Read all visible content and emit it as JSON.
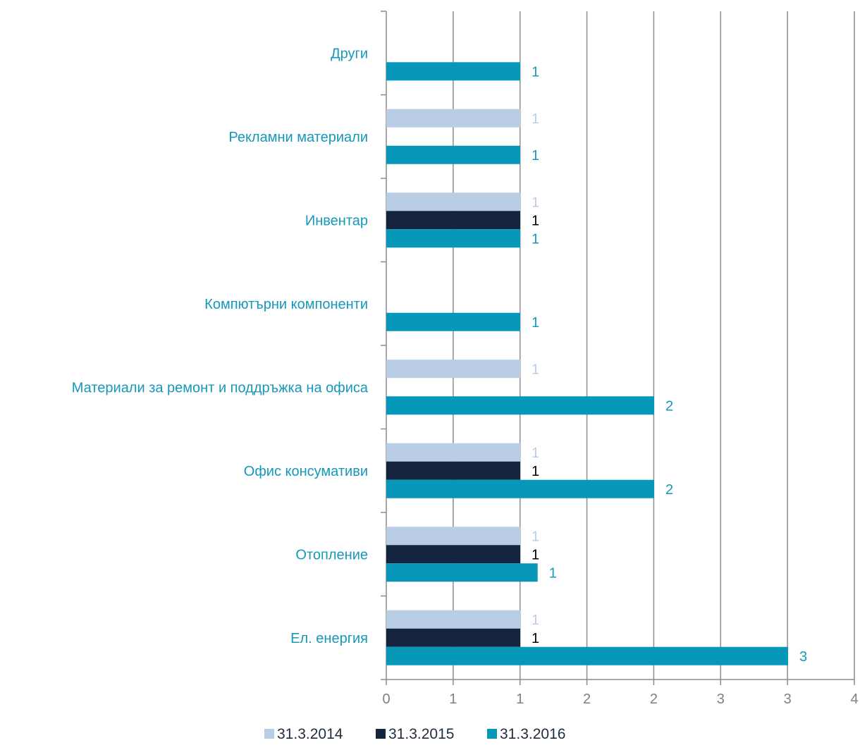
{
  "chart_data": {
    "type": "bar",
    "orientation": "horizontal",
    "categories": [
      "Ел. енергия",
      "Отопление",
      "Офис консумативи",
      "Материали за ремонт и поддръжка на офиса",
      "Компютърни компоненти",
      "Инвентар",
      "Рекламни материали",
      "Други"
    ],
    "x_ticks": [
      "0",
      "1",
      "1",
      "2",
      "2",
      "3",
      "3",
      "4"
    ],
    "xlim": [
      0,
      3.5
    ],
    "grid": "vertical",
    "legend_position": "bottom",
    "series": [
      {
        "name": "31.3.2014",
        "color": "#b9cde5",
        "values": [
          1,
          1,
          1,
          1,
          null,
          1,
          1,
          null
        ],
        "labels": [
          "1",
          "1",
          "1",
          "1",
          "",
          "1",
          "1",
          ""
        ]
      },
      {
        "name": "31.3.2015",
        "color": "#14243f",
        "values": [
          1,
          1,
          1,
          null,
          null,
          1,
          null,
          null
        ],
        "labels": [
          "1",
          "1",
          "1",
          "",
          "",
          "1",
          "",
          ""
        ]
      },
      {
        "name": "31.3.2016",
        "color": "#0797b9",
        "values": [
          3,
          1.13,
          2,
          2,
          1,
          1,
          1,
          1
        ],
        "labels": [
          "3",
          "1",
          "2",
          "2",
          "1",
          "1",
          "1",
          "1"
        ]
      }
    ],
    "category_label_color": "#1598b9",
    "data_label_colors": [
      "#b9cde5",
      "#000000",
      "#1598b9"
    ]
  }
}
